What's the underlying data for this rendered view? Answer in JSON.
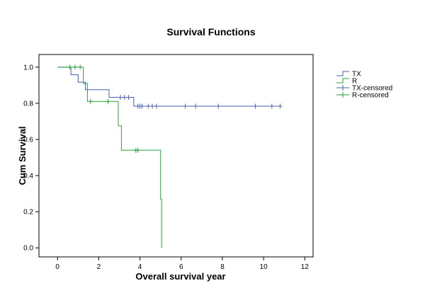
{
  "chart_data": {
    "type": "line",
    "title": "Survival Functions",
    "xlabel": "Overall survival year",
    "ylabel": "Cum Survival",
    "xlim": [
      -0.9,
      12.4
    ],
    "ylim": [
      -0.05,
      1.07
    ],
    "x_ticks": [
      0,
      2,
      4,
      6,
      8,
      10,
      12
    ],
    "y_ticks": [
      0.0,
      0.2,
      0.4,
      0.6,
      0.8,
      1.0
    ],
    "x_tick_labels": [
      "0",
      "2",
      "4",
      "6",
      "8",
      "10",
      "12"
    ],
    "y_tick_labels": [
      "0.0",
      "0.2",
      "0.4",
      "0.6",
      "0.8",
      "1.0"
    ],
    "grid": false,
    "legend_position": "right",
    "series": [
      {
        "name": "TX",
        "color": "#4a5fb5",
        "step_x": [
          0,
          0.65,
          0.65,
          1.0,
          1.0,
          1.35,
          1.35,
          2.5,
          2.5,
          3.7,
          3.7,
          10.8
        ],
        "step_y": [
          1.0,
          1.0,
          0.958,
          0.958,
          0.917,
          0.917,
          0.875,
          0.875,
          0.833,
          0.833,
          0.784,
          0.784
        ]
      },
      {
        "name": "R",
        "color": "#27a33a",
        "step_x": [
          0,
          1.25,
          1.25,
          1.45,
          1.45,
          2.95,
          2.95,
          3.1,
          3.1,
          5.0,
          5.0,
          5.05,
          5.05
        ],
        "step_y": [
          1.0,
          1.0,
          0.91,
          0.91,
          0.81,
          0.81,
          0.675,
          0.675,
          0.54,
          0.54,
          0.27,
          0.27,
          0.0
        ]
      },
      {
        "name": "TX-censored",
        "color": "#4a5fb5",
        "x": [
          3.05,
          3.25,
          3.45,
          3.9,
          4.0,
          4.1,
          4.4,
          4.6,
          4.8,
          6.2,
          6.7,
          7.8,
          9.6,
          10.4,
          10.8
        ],
        "y": [
          0.833,
          0.833,
          0.833,
          0.784,
          0.784,
          0.784,
          0.784,
          0.784,
          0.784,
          0.784,
          0.784,
          0.784,
          0.784,
          0.784,
          0.784
        ]
      },
      {
        "name": "R-censored",
        "color": "#27a33a",
        "x": [
          0.6,
          0.85,
          1.1,
          1.6,
          2.45,
          3.8,
          3.9
        ],
        "y": [
          1.0,
          1.0,
          1.0,
          0.81,
          0.81,
          0.54,
          0.54
        ]
      }
    ]
  }
}
